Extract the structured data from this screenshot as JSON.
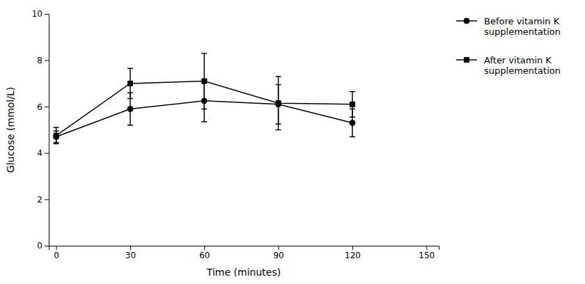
{
  "chart_data": {
    "type": "line",
    "x": [
      0,
      30,
      60,
      90,
      120
    ],
    "series": [
      {
        "name": "Before vitamin K\nsupplementation",
        "color": "#000000",
        "marker": "circle",
        "values": [
          4.7,
          5.9,
          6.25,
          6.1,
          5.3
        ],
        "errors": [
          0.25,
          0.7,
          0.9,
          0.85,
          0.6
        ]
      },
      {
        "name": "After vitamin K\nsupplementation",
        "color": "#000000",
        "marker": "square",
        "values": [
          4.75,
          7.0,
          7.1,
          6.15,
          6.1
        ],
        "errors": [
          0.35,
          0.65,
          1.2,
          1.15,
          0.55
        ]
      }
    ],
    "xlabel": "Time (minutes)",
    "ylabel": "Glucose (mmol/L)",
    "xlim": [
      -3,
      155
    ],
    "ylim": [
      0,
      10
    ],
    "xticks": [
      0,
      30,
      60,
      90,
      120,
      150
    ],
    "yticks": [
      0,
      2,
      4,
      6,
      8,
      10
    ],
    "grid": false,
    "legend": "right"
  }
}
